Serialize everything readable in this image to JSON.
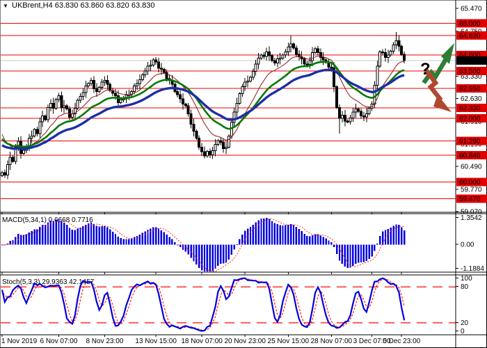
{
  "header": {
    "symbol": "UKBrent",
    "timeframe": "H4",
    "ohlc": {
      "open": "63.830",
      "high": "63.860",
      "low": "63.820",
      "close": "63.830"
    },
    "title": "UKBrent,H4 63.830 63.860 63.820 63.830",
    "dropdown_icon": "▼"
  },
  "price_axis": {
    "plain_ticks": [
      "65.470",
      "64.750",
      "63.330",
      "62.630",
      "61.910",
      "61.190",
      "60.490",
      "59.770",
      "59.070"
    ],
    "plain_tick_values": [
      65.47,
      64.75,
      63.33,
      62.63,
      61.91,
      61.19,
      60.49,
      59.77,
      59.07
    ],
    "level_badges": [
      "65.000",
      "64.620",
      "64.000",
      "63.500",
      "62.950",
      "62.330",
      "62.000",
      "61.290",
      "60.840",
      "60.000",
      "59.470"
    ],
    "level_values": [
      65.0,
      64.62,
      64.0,
      63.5,
      62.95,
      62.33,
      62.0,
      61.29,
      60.84,
      60.0,
      59.47
    ],
    "current_badge": "63.830",
    "current_value": 63.83
  },
  "time_axis": {
    "labels": [
      {
        "text": "1 Nov 2019",
        "bar": 0,
        "align": "start"
      },
      {
        "text": "6 Nov 07:00",
        "bar": 21,
        "align": "middle"
      },
      {
        "text": "8 Nov 23:00",
        "bar": 38,
        "align": "middle"
      },
      {
        "text": "13 Nov 15:00",
        "bar": 57,
        "align": "middle"
      },
      {
        "text": "18 Nov 07:00",
        "bar": 74,
        "align": "middle"
      },
      {
        "text": "20 Nov 23:00",
        "bar": 90,
        "align": "middle"
      },
      {
        "text": "25 Nov 15:00",
        "bar": 106,
        "align": "middle"
      },
      {
        "text": "28 Nov 07:00",
        "bar": 122,
        "align": "middle"
      },
      {
        "text": "3 Dec 07:00",
        "bar": 137,
        "align": "middle"
      },
      {
        "text": "5 Dec 23:00",
        "bar": 148,
        "align": "middle"
      }
    ]
  },
  "macd": {
    "label": "MACD(5,34,1) 0.6668 0.7716",
    "params": [
      5,
      34,
      1
    ],
    "current_values": [
      0.6668,
      0.7716
    ],
    "axis_ticks": [
      "1.3542",
      "0.00",
      "-1.1884"
    ],
    "range": {
      "max": 1.3542,
      "min": -1.1884
    }
  },
  "stoch": {
    "label": "Stoch(5,3,3) 29.9363 42.1457",
    "params": [
      5,
      3,
      3
    ],
    "current_values": [
      29.9363,
      42.1457
    ],
    "axis_ticks": [
      "100",
      "80",
      "20",
      "0"
    ],
    "level_lines": [
      80,
      20
    ]
  },
  "annotations": {
    "question_mark": "?",
    "up_arrow": "up-trend-arrow",
    "down_arrow": "down-trend-arrow"
  },
  "colors": {
    "level_line": "#f00000",
    "badge_bg": "#e00000",
    "badge_text": "#ffffff",
    "current_badge_bg": "#000000",
    "current_price_line": "#c8c8c8",
    "candle_outline": "#000000",
    "candle_bull_fill": "#ffffff",
    "candle_bear_fill": "#000000",
    "ma_fast": "#8b1a1a",
    "ma_medium": "#007a00",
    "ma_slow": "#1c2fa8",
    "macd_bars": "#0000e0",
    "macd_signal": "#ff2020",
    "stoch_k": "#0000dd",
    "stoch_d": "#ff2020",
    "stoch_levels": "#ff3030",
    "up_arrow": "#2e7d32",
    "down_arrow": "#b0482e",
    "panel_border": "#000000"
  },
  "chart_data": {
    "type": "candlestick",
    "symbol": "UKBrent",
    "timeframe": "H4",
    "price_range_visible": [
      59.07,
      65.47
    ],
    "open_first": 60.2,
    "closes": [
      60.3,
      60.22,
      60.55,
      60.78,
      60.65,
      61.1,
      61.28,
      60.9,
      61.0,
      61.1,
      61.38,
      61.45,
      61.65,
      61.52,
      61.9,
      62.08,
      61.96,
      62.35,
      62.48,
      62.32,
      62.6,
      62.72,
      62.34,
      62.4,
      62.3,
      62.04,
      62.15,
      62.32,
      62.58,
      62.7,
      62.82,
      63.02,
      63.1,
      63.2,
      62.94,
      62.85,
      62.98,
      63.15,
      63.2,
      63.08,
      62.88,
      62.8,
      62.72,
      62.5,
      62.6,
      62.62,
      62.74,
      62.75,
      62.85,
      63.02,
      63.1,
      63.22,
      63.38,
      63.5,
      63.65,
      63.68,
      63.85,
      63.78,
      63.58,
      63.55,
      63.45,
      63.26,
      63.2,
      63.08,
      62.85,
      62.75,
      62.62,
      62.45,
      62.4,
      62.15,
      61.82,
      61.6,
      61.38,
      61.1,
      60.95,
      60.82,
      60.96,
      60.85,
      60.98,
      61.18,
      61.3,
      61.25,
      61.05,
      61.1,
      61.45,
      61.88,
      62.2,
      62.48,
      62.78,
      63.0,
      63.15,
      63.18,
      63.3,
      63.48,
      63.72,
      63.9,
      64.0,
      63.96,
      64.1,
      63.98,
      63.82,
      63.75,
      63.88,
      63.9,
      64.0,
      64.1,
      64.25,
      64.35,
      64.22,
      64.02,
      63.95,
      63.88,
      63.72,
      63.7,
      63.82,
      64.08,
      64.2,
      64.08,
      63.92,
      63.85,
      63.78,
      63.62,
      63.6,
      63.0,
      62.35,
      62.0,
      62.1,
      61.92,
      61.9,
      62.02,
      62.2,
      62.3,
      62.22,
      62.08,
      62.05,
      62.15,
      62.32,
      62.45,
      63.05,
      63.65,
      64.1,
      64.08,
      63.92,
      64.0,
      64.12,
      64.32,
      64.45,
      64.28,
      64.02,
      63.83
    ],
    "wick_overrides": {
      "75": {
        "low": 60.74
      },
      "107": {
        "high": 64.62
      },
      "125": {
        "low": 61.52
      },
      "146": {
        "high": 64.72
      }
    },
    "moving_averages": [
      {
        "name": "fast",
        "period": 13,
        "seed": 61.7
      },
      {
        "name": "medium",
        "period": 24,
        "seed": 61.45
      },
      {
        "name": "slow",
        "period": 40,
        "seed": 61.2
      }
    ],
    "horizontal_levels": [
      65.0,
      64.62,
      64.0,
      63.5,
      62.95,
      62.33,
      62.0,
      61.29,
      60.84,
      60.0,
      59.47
    ],
    "current_price": 63.83,
    "sub_panels": [
      {
        "name": "MACD",
        "params": [
          5,
          34,
          1
        ],
        "derived_from": "closes",
        "axis_max": 1.3542,
        "axis_min": -1.1884,
        "last_values": [
          0.6668,
          0.7716
        ]
      },
      {
        "name": "Stochastic",
        "params": [
          5,
          3,
          3
        ],
        "derived_from": "closes",
        "axis_max": 100,
        "axis_min": 0,
        "last_values": [
          29.9363,
          42.1457
        ]
      }
    ]
  }
}
